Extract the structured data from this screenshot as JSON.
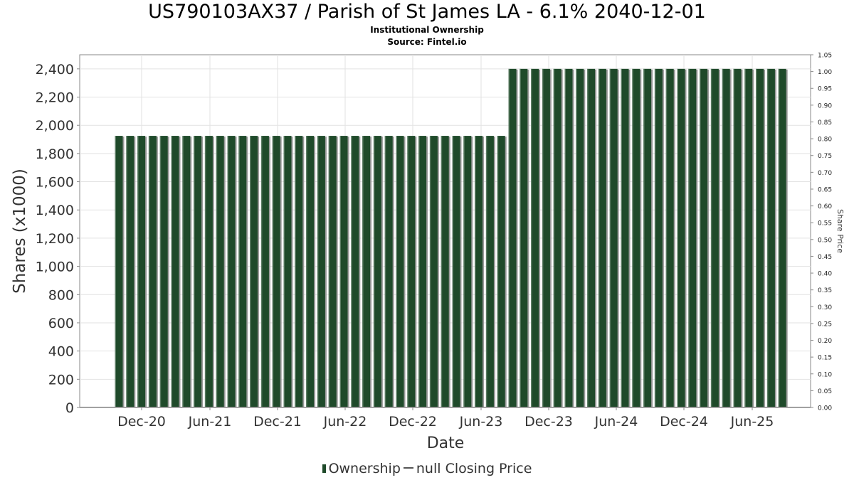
{
  "chart_data": {
    "type": "bar",
    "title": "US790103AX37 / Parish of St James LA - 6.1% 2040-12-01",
    "subtitle": "Institutional Ownership",
    "source": "Source: Fintel.io",
    "xlabel": "Date",
    "ylabel": "Shares (x1000)",
    "y2label": "Share Price",
    "ylim": [
      0,
      2500
    ],
    "y2lim": [
      0,
      1.05
    ],
    "yticks": [
      "0",
      "200",
      "400",
      "600",
      "800",
      "1,000",
      "1,200",
      "1,400",
      "1,600",
      "1,800",
      "2,000",
      "2,200",
      "2,400"
    ],
    "y2ticks": [
      "0.00",
      "0.05",
      "0.10",
      "0.15",
      "0.20",
      "0.25",
      "0.30",
      "0.35",
      "0.40",
      "0.45",
      "0.50",
      "0.55",
      "0.60",
      "0.65",
      "0.70",
      "0.75",
      "0.80",
      "0.85",
      "0.90",
      "0.95",
      "1.00",
      "1.05"
    ],
    "xticks": [
      "Dec-20",
      "Jun-21",
      "Dec-21",
      "Jun-22",
      "Dec-22",
      "Jun-23",
      "Dec-23",
      "Jun-24",
      "Dec-24",
      "Jun-25"
    ],
    "grid": true,
    "legend_position": "bottom",
    "series": [
      {
        "name": "Ownership",
        "color": "#1f4a2a",
        "values": [
          1925,
          1925,
          1925,
          1925,
          1925,
          1925,
          1925,
          1925,
          1925,
          1925,
          1925,
          1925,
          1925,
          1925,
          1925,
          1925,
          1925,
          1925,
          1925,
          1925,
          1925,
          1925,
          1925,
          1925,
          1925,
          1925,
          1925,
          1925,
          1925,
          1925,
          1925,
          1925,
          1925,
          1925,
          1925,
          2400,
          2400,
          2400,
          2400,
          2400,
          2400,
          2400,
          2400,
          2400,
          2400,
          2400,
          2400,
          2400,
          2400,
          2400,
          2400,
          2400,
          2400,
          2400,
          2400,
          2400,
          2400,
          2400,
          2400,
          2400
        ]
      },
      {
        "name": "null Closing Price",
        "color": "#555555",
        "values": []
      }
    ]
  }
}
